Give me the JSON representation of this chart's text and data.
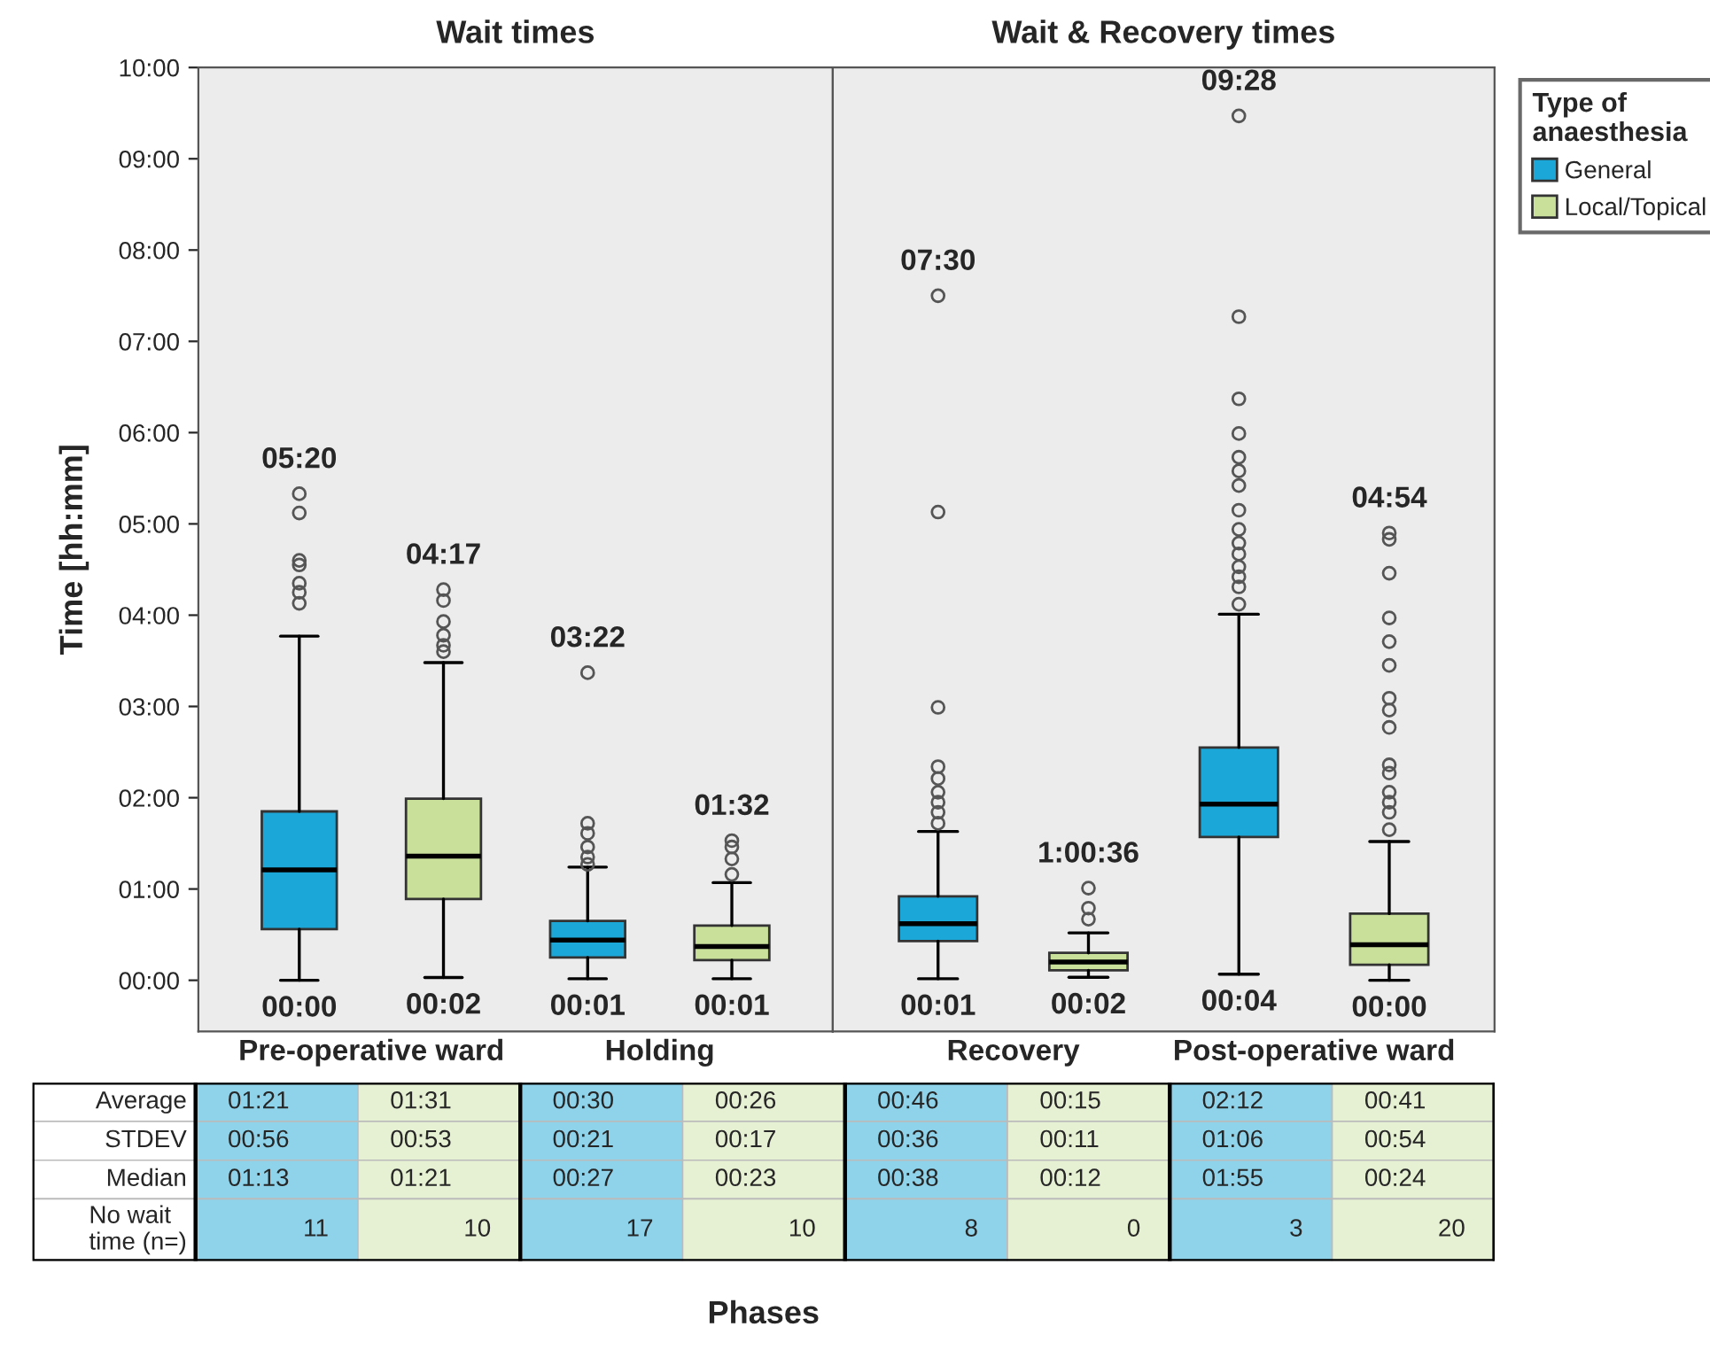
{
  "chart_data": [
    {
      "type": "box",
      "title": "Wait times",
      "ylabel": "Time [hh:mm]",
      "categories": [
        "Pre-operative ward",
        "Holding"
      ],
      "ylim": [
        -0.56,
        10
      ],
      "yticks": [
        {
          "value": 0,
          "label": "00:00"
        },
        {
          "value": 1,
          "label": "01:00"
        },
        {
          "value": 2,
          "label": "02:00"
        },
        {
          "value": 3,
          "label": "03:00"
        },
        {
          "value": 4,
          "label": "04:00"
        },
        {
          "value": 5,
          "label": "05:00"
        },
        {
          "value": 6,
          "label": "06:00"
        },
        {
          "value": 7,
          "label": "07:00"
        },
        {
          "value": 8,
          "label": "08:00"
        },
        {
          "value": 9,
          "label": "09:00"
        },
        {
          "value": 10,
          "label": "10:00"
        }
      ],
      "series": [
        {
          "color": "#1ba8d8",
          "boxes": [
            {
              "low": 0,
              "q1": 0.56,
              "median": 1.21,
              "q3": 1.85,
              "high": 3.77,
              "outliers": [
                5.33,
                5.12,
                4.6,
                4.55,
                4.35,
                4.25,
                4.13
              ]
            },
            {
              "low": 0.017,
              "q1": 0.25,
              "median": 0.44,
              "q3": 0.65,
              "high": 1.24,
              "outliers": [
                3.37,
                1.72,
                1.61,
                1.46,
                1.35,
                1.27
              ]
            }
          ]
        },
        {
          "color": "#c8e09a",
          "boxes": [
            {
              "low": 0.03,
              "q1": 0.89,
              "median": 1.36,
              "q3": 1.99,
              "high": 3.48,
              "outliers": [
                4.28,
                4.16,
                3.93,
                3.78,
                3.67,
                3.6
              ]
            },
            {
              "low": 0.017,
              "q1": 0.22,
              "median": 0.37,
              "q3": 0.6,
              "high": 1.07,
              "outliers": [
                1.53,
                1.46,
                1.33,
                1.16
              ]
            }
          ]
        }
      ],
      "annotations": [
        "05:20",
        "00:00",
        "04:17",
        "00:02",
        "03:22",
        "00:01",
        "01:32",
        "00:01"
      ]
    },
    {
      "type": "box",
      "title": "Wait & Recovery times",
      "categories": [
        "Recovery",
        "Post-operative ward"
      ],
      "tick_labels": "x",
      "legend": "right",
      "legend_title": "Type of\nanaesthesia",
      "ylim": [
        -0.56,
        10
      ],
      "series": [
        {
          "name": "General",
          "color": "#1ba8d8",
          "boxes": [
            {
              "low": 0.017,
              "q1": 0.43,
              "median": 0.62,
              "q3": 0.92,
              "high": 1.63,
              "outliers": [
                7.5,
                5.13,
                2.99,
                2.34,
                2.21,
                2.06,
                1.95,
                1.84,
                1.72
              ]
            },
            {
              "low": 0.067,
              "q1": 1.57,
              "median": 1.93,
              "q3": 2.55,
              "high": 4.01,
              "outliers": [
                9.47,
                7.27,
                6.37,
                5.99,
                5.73,
                5.58,
                5.42,
                5.15,
                4.94,
                4.79,
                4.67,
                4.53,
                4.42,
                4.31,
                4.12
              ]
            }
          ]
        },
        {
          "name": "Local/Topical",
          "color": "#c8e09a",
          "boxes": [
            {
              "low": 0.033,
              "q1": 0.11,
              "median": 0.2,
              "q3": 0.3,
              "high": 0.52,
              "outliers": [
                1.01,
                0.79,
                0.67
              ]
            },
            {
              "low": 0,
              "q1": 0.17,
              "median": 0.39,
              "q3": 0.73,
              "high": 1.52,
              "outliers": [
                4.9,
                4.83,
                4.46,
                3.97,
                3.71,
                3.45,
                3.09,
                2.96,
                2.77,
                2.36,
                2.27,
                2.06,
                1.95,
                1.84,
                1.65
              ]
            }
          ]
        }
      ],
      "annotations": [
        "07:30",
        "00:01",
        "1:00:36",
        "00:02",
        "09:28",
        "00:04",
        "04:54",
        "00:00"
      ]
    },
    {
      "type": "other",
      "xlabel": "Phases",
      "y_categories": [
        "Average",
        "STDEV",
        "Median",
        "No wait\ntime (n=)"
      ],
      "colors": [
        "#8fd3ea",
        "#e6f0d2",
        "#8fd3ea",
        "#e6f0d2",
        "#8fd3ea",
        "#e6f0d2",
        "#8fd3ea",
        "#e6f0d2"
      ],
      "cell_labels": [
        [
          "01:21",
          "01:31",
          "00:30",
          "00:26",
          "00:46",
          "00:15",
          "02:12",
          "00:41"
        ],
        [
          "00:56",
          "00:53",
          "00:21",
          "00:17",
          "00:36",
          "00:11",
          "01:06",
          "00:54"
        ],
        [
          "01:13",
          "01:21",
          "00:27",
          "00:23",
          "00:38",
          "00:12",
          "01:55",
          "00:24"
        ],
        [
          "11",
          "10",
          "17",
          "10",
          "8",
          "0",
          "3",
          "20"
        ]
      ]
    }
  ]
}
